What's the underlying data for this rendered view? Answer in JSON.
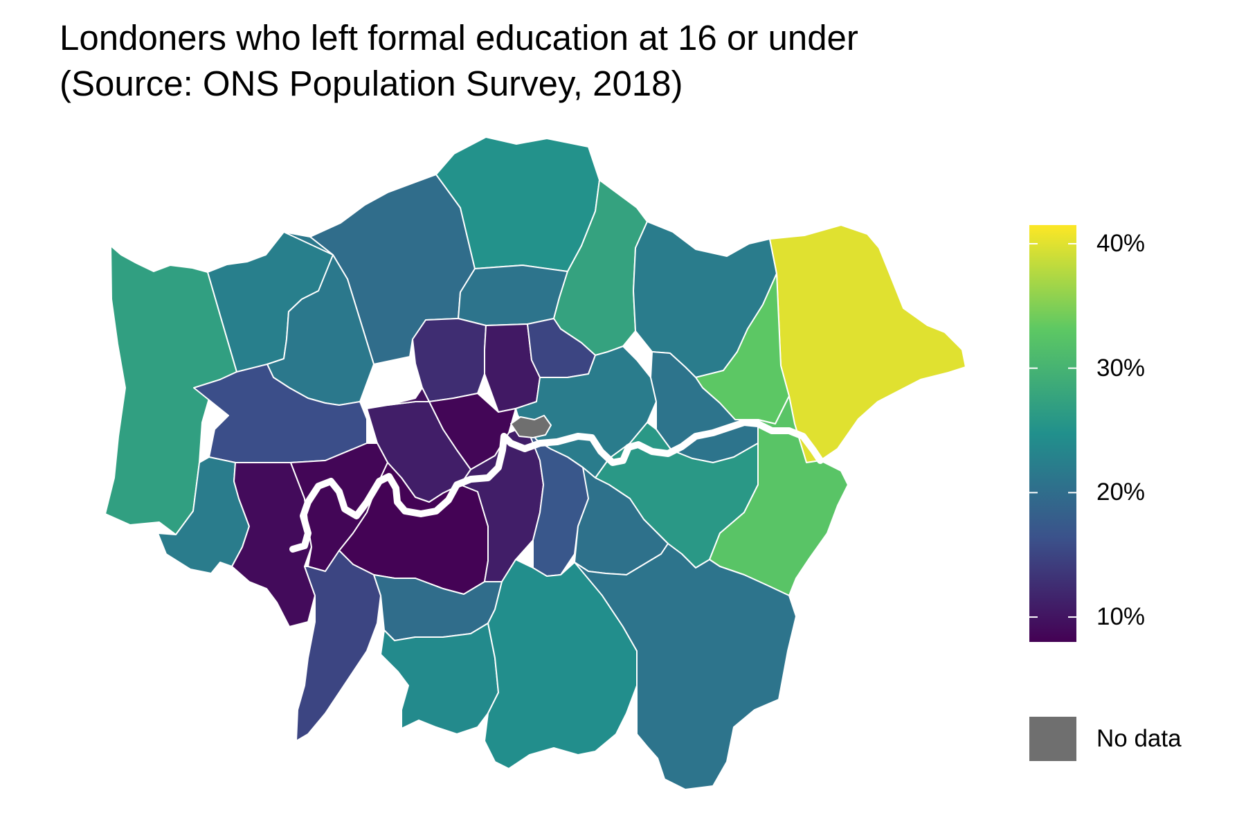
{
  "title": {
    "line1": "Londoners who left formal education at 16 or under",
    "line2": "(Source: ONS Population Survey, 2018)"
  },
  "legend": {
    "ticks": [
      {
        "value": 10,
        "label": "10%"
      },
      {
        "value": 20,
        "label": "20%"
      },
      {
        "value": 30,
        "label": "30%"
      },
      {
        "value": 40,
        "label": "40%"
      }
    ],
    "range": [
      8,
      41.5
    ],
    "no_data_label": "No data",
    "no_data_color": "#6f6f6f"
  },
  "colors": {
    "scale": [
      "#440154",
      "#3b528b",
      "#21908c",
      "#5dc863",
      "#fde725"
    ],
    "scale_name": "viridis",
    "boundary": "#ffffff",
    "river": "#ffffff"
  },
  "map_data": {
    "type": "choropleth",
    "unit": "%",
    "areas": [
      {
        "id": "northwest-outer",
        "value": 27
      },
      {
        "id": "north-west",
        "value": 22.5
      },
      {
        "id": "north-central",
        "value": 20
      },
      {
        "id": "north",
        "value": 25
      },
      {
        "id": "north-inner",
        "value": 21
      },
      {
        "id": "north-east",
        "value": 27.5
      },
      {
        "id": "east-outer",
        "value": 22
      },
      {
        "id": "far-east",
        "value": 40
      },
      {
        "id": "east",
        "value": 33
      },
      {
        "id": "west-mid",
        "value": 21.5
      },
      {
        "id": "west-inner",
        "value": 16
      },
      {
        "id": "central-north",
        "value": 12.5
      },
      {
        "id": "central-north-2",
        "value": 10.5
      },
      {
        "id": "central-north-3",
        "value": 15
      },
      {
        "id": "central",
        "value": 8.5
      },
      {
        "id": "central-west",
        "value": 11
      },
      {
        "id": "central-west-2",
        "value": 9.5
      },
      {
        "id": "inner-east",
        "value": 22
      },
      {
        "id": "east-mid",
        "value": 21
      },
      {
        "id": "south-east-inner",
        "value": 26
      },
      {
        "id": "south-east",
        "value": 32.5
      },
      {
        "id": "south-west-outer",
        "value": 22
      },
      {
        "id": "south-west",
        "value": 9
      },
      {
        "id": "south-west-inner",
        "value": 8.5
      },
      {
        "id": "south-central",
        "value": 8.2
      },
      {
        "id": "south-central-2",
        "value": 11
      },
      {
        "id": "south-central-3",
        "value": 17
      },
      {
        "id": "south-east-mid",
        "value": 20.5
      },
      {
        "id": "south-outer-west",
        "value": 15
      },
      {
        "id": "south-mid",
        "value": 20
      },
      {
        "id": "south-outer",
        "value": 24
      },
      {
        "id": "south-outer-2",
        "value": 24.5
      },
      {
        "id": "south-east-outer",
        "value": 21
      },
      {
        "id": "city",
        "value": null
      }
    ]
  }
}
